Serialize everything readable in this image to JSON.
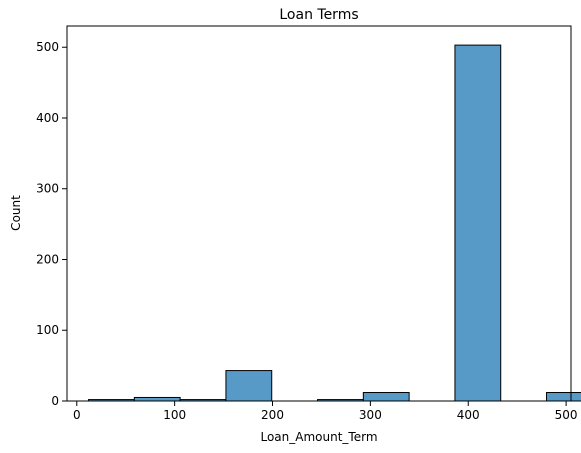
{
  "chart_data": {
    "type": "bar",
    "title": "Loan Terms",
    "xlabel": "Loan_Amount_Term",
    "ylabel": "Count",
    "xlim": [
      -10,
      505
    ],
    "ylim": [
      0,
      530
    ],
    "xticks": [
      0,
      100,
      200,
      300,
      400,
      500
    ],
    "yticks": [
      0,
      100,
      200,
      300,
      400,
      500
    ],
    "bar_color": "#5799c7",
    "bins": [
      {
        "x0": 12.0,
        "x1": 58.8,
        "count": 2
      },
      {
        "x0": 58.8,
        "x1": 105.6,
        "count": 5
      },
      {
        "x0": 105.6,
        "x1": 152.4,
        "count": 2
      },
      {
        "x0": 152.4,
        "x1": 199.2,
        "count": 43
      },
      {
        "x0": 199.2,
        "x1": 246.0,
        "count": 0
      },
      {
        "x0": 246.0,
        "x1": 292.8,
        "count": 2
      },
      {
        "x0": 292.8,
        "x1": 339.6,
        "count": 12
      },
      {
        "x0": 339.6,
        "x1": 386.4,
        "count": 0
      },
      {
        "x0": 386.4,
        "x1": 433.2,
        "count": 503
      },
      {
        "x0": 433.2,
        "x1": 480.0,
        "count": 0
      },
      {
        "x0": 480.0,
        "x1": 526.8,
        "count": 12
      }
    ],
    "grid": false,
    "legend": "none"
  }
}
